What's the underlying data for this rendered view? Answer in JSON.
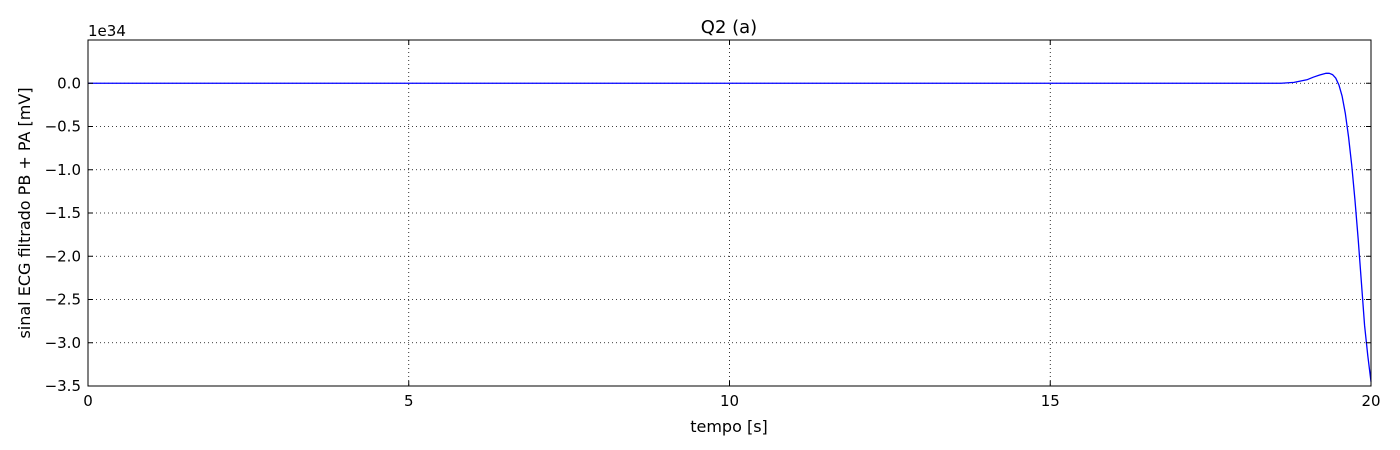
{
  "chart_data": {
    "type": "line",
    "title": "Q2 (a)",
    "xlabel": "tempo [s]",
    "ylabel": "sinal ECG filtrado PB + PA [mV]",
    "y_offset_label": "1e34",
    "xlim": [
      0,
      20
    ],
    "ylim": [
      -3.5,
      0.5
    ],
    "x_ticks": [
      0,
      5,
      10,
      15,
      20
    ],
    "x_tick_labels": [
      "0",
      "5",
      "10",
      "15",
      "20"
    ],
    "y_ticks": [
      0.0,
      -0.5,
      -1.0,
      -1.5,
      -2.0,
      -2.5,
      -3.0,
      -3.5
    ],
    "y_tick_labels": [
      "0.0",
      "−0.5",
      "−1.0",
      "−1.5",
      "−2.0",
      "−2.5",
      "−3.0",
      "−3.5"
    ],
    "grid": true,
    "series": [
      {
        "color": "#0000ff",
        "x": [
          0,
          18.0,
          18.6,
          18.8,
          19.0,
          19.1,
          19.2,
          19.3,
          19.35,
          19.4,
          19.45,
          19.5,
          19.55,
          19.6,
          19.65,
          19.7,
          19.75,
          19.8,
          19.85,
          19.9,
          19.95,
          20.0
        ],
        "y": [
          0,
          0,
          0.0,
          0.01,
          0.04,
          0.07,
          0.095,
          0.115,
          0.115,
          0.1,
          0.06,
          -0.02,
          -0.15,
          -0.35,
          -0.62,
          -0.95,
          -1.35,
          -1.8,
          -2.3,
          -2.8,
          -3.15,
          -3.45
        ]
      }
    ]
  }
}
